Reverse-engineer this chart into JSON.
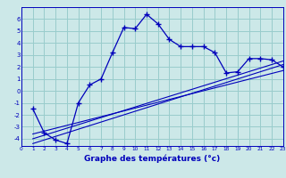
{
  "xlabel": "Graphe des températures (°c)",
  "bg_color": "#cce8e8",
  "grid_color": "#99cccc",
  "line_color": "#0000bb",
  "x_main": [
    1,
    2,
    3,
    4,
    5,
    6,
    7,
    8,
    9,
    10,
    11,
    12,
    13,
    14,
    15,
    16,
    17,
    18,
    19,
    20,
    21,
    22,
    23
  ],
  "y_main": [
    -1.5,
    -3.5,
    -4.1,
    -4.4,
    -1.0,
    0.5,
    1.0,
    3.2,
    5.3,
    5.2,
    6.4,
    5.6,
    4.3,
    3.7,
    3.7,
    3.7,
    3.2,
    1.5,
    1.6,
    2.7,
    2.7,
    2.6,
    2.0
  ],
  "reg_lines": [
    {
      "x": [
        1,
        23
      ],
      "y": [
        -4.4,
        2.2
      ]
    },
    {
      "x": [
        1,
        23
      ],
      "y": [
        -4.0,
        2.5
      ]
    },
    {
      "x": [
        1,
        23
      ],
      "y": [
        -3.6,
        1.7
      ]
    }
  ],
  "xlim": [
    0,
    23
  ],
  "ylim": [
    -4.6,
    7.0
  ],
  "xticks": [
    0,
    1,
    2,
    3,
    4,
    5,
    6,
    7,
    8,
    9,
    10,
    11,
    12,
    13,
    14,
    15,
    16,
    17,
    18,
    19,
    20,
    21,
    22,
    23
  ],
  "yticks": [
    -4,
    -3,
    -2,
    -1,
    0,
    1,
    2,
    3,
    4,
    5,
    6
  ]
}
